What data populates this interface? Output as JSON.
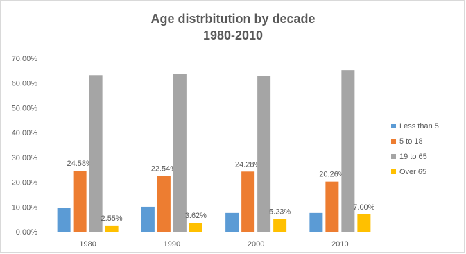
{
  "chart_data": {
    "type": "bar",
    "title": "Age distrbitution by decade",
    "subtitle": "1980-2010",
    "categories": [
      "1980",
      "1990",
      "2000",
      "2010"
    ],
    "series": [
      {
        "name": "Less than 5",
        "color": "#5B9BD5",
        "values": [
          9.7,
          10.1,
          7.6,
          7.6
        ],
        "labels": [
          "",
          "",
          "",
          ""
        ]
      },
      {
        "name": "5 to 18",
        "color": "#ED7D31",
        "values": [
          24.58,
          22.54,
          24.28,
          20.26
        ],
        "labels": [
          "24.58%",
          "22.54%",
          "24.28%",
          "20.26%"
        ]
      },
      {
        "name": "19 to 65",
        "color": "#A5A5A5",
        "values": [
          63.2,
          63.7,
          63.0,
          65.2
        ],
        "labels": [
          "",
          "",
          "",
          ""
        ]
      },
      {
        "name": "Over 65",
        "color": "#FFC000",
        "values": [
          2.55,
          3.62,
          5.23,
          7.0
        ],
        "labels": [
          "2.55%",
          "3.62%",
          "5.23%",
          "7.00%"
        ]
      }
    ],
    "yticks": [
      "0.00%",
      "10.00%",
      "20.00%",
      "30.00%",
      "40.00%",
      "50.00%",
      "60.00%",
      "70.00%"
    ],
    "ylim": [
      0,
      70
    ],
    "grid": false,
    "legend_position": "right"
  }
}
